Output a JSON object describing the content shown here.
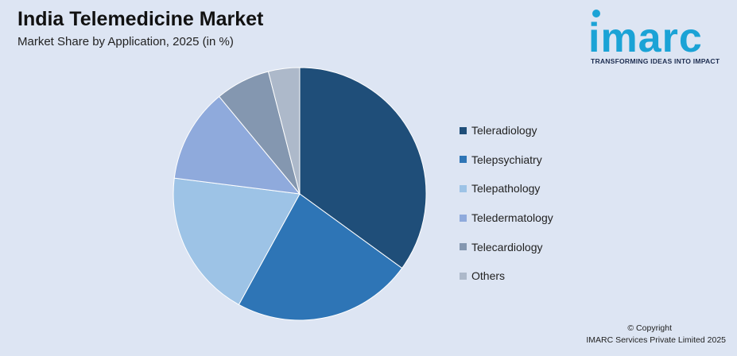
{
  "header": {
    "title": "India Telemedicine Market",
    "subtitle": "Market Share by Application, 2025 (in %)"
  },
  "logo": {
    "brand": "imarc",
    "tagline": "TRANSFORMING IDEAS INTO IMPACT",
    "color": "#1ba3d6"
  },
  "chart_data": {
    "type": "pie",
    "title": "India Telemedicine Market",
    "subtitle": "Market Share by Application, 2025 (in %)",
    "legend_position": "right",
    "start": "top",
    "direction": "clockwise",
    "categories": [
      "Teleradiology",
      "Telepsychiatry",
      "Telepathology",
      "Teledermatology",
      "Telecardiology",
      "Others"
    ],
    "values": [
      35,
      23,
      19,
      12,
      7,
      4
    ],
    "colors": [
      "#1f4e79",
      "#2e75b6",
      "#9dc3e6",
      "#8faadc",
      "#8497b0",
      "#adb9ca"
    ]
  },
  "footer": {
    "copyright": "© Copyright",
    "company": "IMARC Services Private Limited 2025"
  }
}
